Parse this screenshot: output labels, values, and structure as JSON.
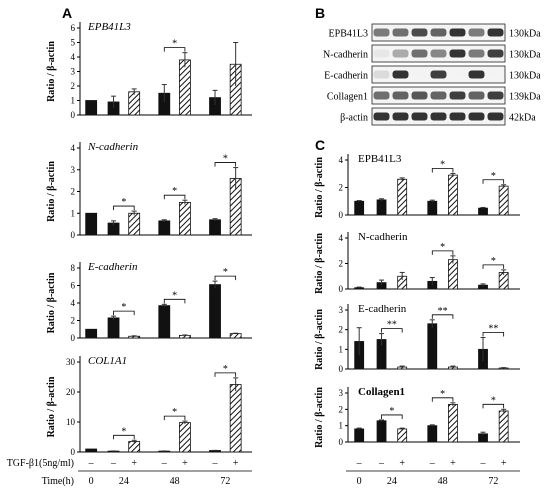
{
  "panel_labels": {
    "a": "A",
    "b": "B",
    "c": "C"
  },
  "x_axis": {
    "treatment_label": "TGF-β1(5ng/ml)",
    "time_label": "Time(h)",
    "treatment_signs": [
      "–",
      "–",
      "+",
      "–",
      "+",
      "–",
      "+"
    ],
    "time_values": [
      "0",
      "24",
      "48",
      "72"
    ]
  },
  "western_blot": {
    "bands": [
      {
        "protein": "EPB41L3",
        "size": "130kDa"
      },
      {
        "protein": "N-cadherin",
        "size": "130kDa"
      },
      {
        "protein": "E-cadherin",
        "size": "130kDa"
      },
      {
        "protein": "Collagen1",
        "size": "139kDa"
      },
      {
        "protein": "β-actin",
        "size": "42kDa"
      }
    ],
    "intensity": [
      [
        0.55,
        0.6,
        0.75,
        0.65,
        0.85,
        0.55,
        0.85
      ],
      [
        0.1,
        0.35,
        0.6,
        0.5,
        0.85,
        0.55,
        0.8
      ],
      [
        0.15,
        0.85,
        0.05,
        0.8,
        0.05,
        0.85,
        0.05
      ],
      [
        0.6,
        0.65,
        0.7,
        0.65,
        0.8,
        0.65,
        0.8
      ],
      [
        0.85,
        0.85,
        0.85,
        0.85,
        0.85,
        0.85,
        0.85
      ]
    ]
  },
  "chart_data": [
    {
      "panel": "A",
      "type": "bar",
      "title": "EPB41L3",
      "ylabel": "Ratio / β-actin",
      "ylim": [
        0,
        6
      ],
      "yticks": [
        0,
        1,
        2,
        3,
        4,
        5,
        6
      ],
      "values": [
        1.0,
        0.9,
        1.6,
        1.5,
        3.8,
        1.2,
        3.5
      ],
      "errors": [
        0,
        0.4,
        0.2,
        0.6,
        0.5,
        0.5,
        1.5
      ],
      "sig": [
        {
          "from": 3,
          "to": 4,
          "label": "*"
        }
      ]
    },
    {
      "panel": "A",
      "type": "bar",
      "title": "N-cadherin",
      "ylabel": "Ratio / β-actin",
      "ylim": [
        0,
        4
      ],
      "yticks": [
        0,
        1,
        2,
        3,
        4
      ],
      "values": [
        1.0,
        0.55,
        1.0,
        0.65,
        1.5,
        0.7,
        2.6
      ],
      "errors": [
        0,
        0.1,
        0.1,
        0.05,
        0.1,
        0.05,
        0.5
      ],
      "sig": [
        {
          "from": 1,
          "to": 2,
          "label": "*"
        },
        {
          "from": 3,
          "to": 4,
          "label": "*"
        },
        {
          "from": 5,
          "to": 6,
          "label": "*"
        }
      ]
    },
    {
      "panel": "A",
      "type": "bar",
      "title": "E-cadherin",
      "ylabel": "Ratio / β-actin",
      "ylim": [
        0,
        8
      ],
      "yticks": [
        0,
        2,
        4,
        6,
        8
      ],
      "values": [
        1.0,
        2.3,
        0.2,
        3.7,
        0.3,
        6.1,
        0.5
      ],
      "errors": [
        0,
        0.2,
        0.05,
        0.15,
        0.05,
        0.4,
        0.05
      ],
      "sig": [
        {
          "from": 1,
          "to": 2,
          "label": "*"
        },
        {
          "from": 3,
          "to": 4,
          "label": "*"
        },
        {
          "from": 5,
          "to": 6,
          "label": "*"
        }
      ]
    },
    {
      "panel": "A",
      "type": "bar",
      "title": "COL1A1",
      "ylabel": "Ratio / β-actin",
      "ylim": [
        0,
        30
      ],
      "yticks": [
        0,
        10,
        20,
        30
      ],
      "values": [
        1.0,
        0.3,
        3.5,
        0.3,
        9.8,
        0.5,
        22.5
      ],
      "errors": [
        0,
        0.05,
        0.4,
        0.05,
        0.5,
        0.05,
        2.2
      ],
      "sig": [
        {
          "from": 1,
          "to": 2,
          "label": "*"
        },
        {
          "from": 3,
          "to": 4,
          "label": "*"
        },
        {
          "from": 5,
          "to": 6,
          "label": "*"
        }
      ]
    },
    {
      "panel": "C",
      "type": "bar",
      "title": "EPB41L3",
      "ylabel": "Ratio / β-actin",
      "ylim": [
        0,
        4
      ],
      "yticks": [
        0,
        2,
        4
      ],
      "values": [
        1.0,
        1.1,
        2.6,
        1.0,
        2.9,
        0.5,
        2.1
      ],
      "errors": [
        0.05,
        0.08,
        0.1,
        0.08,
        0.12,
        0.05,
        0.1
      ],
      "sig": [
        {
          "from": 3,
          "to": 4,
          "label": "*"
        },
        {
          "from": 5,
          "to": 6,
          "label": "*"
        }
      ]
    },
    {
      "panel": "C",
      "type": "bar",
      "title": "N-cadherin",
      "ylabel": "Ratio / β-actin",
      "ylim": [
        0,
        4
      ],
      "yticks": [
        0,
        2,
        4
      ],
      "values": [
        0.1,
        0.5,
        1.0,
        0.6,
        2.3,
        0.3,
        1.3
      ],
      "errors": [
        0.05,
        0.2,
        0.3,
        0.3,
        0.3,
        0.1,
        0.2
      ],
      "sig": [
        {
          "from": 3,
          "to": 4,
          "label": "*"
        },
        {
          "from": 5,
          "to": 6,
          "label": "*"
        }
      ]
    },
    {
      "panel": "C",
      "type": "bar",
      "title": "E-cadherin",
      "ylabel": "Ratio / β-actin",
      "ylim": [
        0,
        3
      ],
      "yticks": [
        0,
        1,
        2,
        3
      ],
      "values": [
        1.4,
        1.5,
        0.1,
        2.3,
        0.1,
        1.0,
        0.05
      ],
      "errors": [
        0.7,
        0.3,
        0.05,
        0.2,
        0.05,
        0.6,
        0.02
      ],
      "sig": [
        {
          "from": 1,
          "to": 2,
          "label": "**"
        },
        {
          "from": 3,
          "to": 4,
          "label": "**"
        },
        {
          "from": 5,
          "to": 6,
          "label": "**"
        }
      ]
    },
    {
      "panel": "C",
      "type": "bar",
      "title": "Collagen1",
      "ylabel": "Ratio / β-actin",
      "ylim": [
        0,
        3
      ],
      "yticks": [
        0,
        1,
        2,
        3
      ],
      "values": [
        0.8,
        1.3,
        0.8,
        1.0,
        2.3,
        0.5,
        1.9
      ],
      "errors": [
        0.05,
        0.05,
        0.05,
        0.05,
        0.1,
        0.1,
        0.1
      ],
      "sig": [
        {
          "from": 1,
          "to": 2,
          "label": "*"
        },
        {
          "from": 3,
          "to": 4,
          "label": "*"
        },
        {
          "from": 5,
          "to": 6,
          "label": "*"
        }
      ]
    }
  ]
}
